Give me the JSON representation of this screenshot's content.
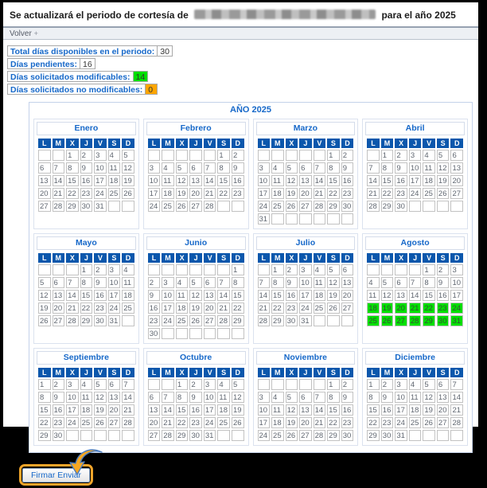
{
  "page": {
    "title_prefix": "Se actualizará el periodo de cortesía de",
    "title_suffix": "para el año 2025",
    "back_label": "Volver",
    "back_glyph": "+"
  },
  "summary": {
    "rows": [
      {
        "label": "Total días disponibles en el periodo:",
        "value": "30",
        "bg": "#ffffff"
      },
      {
        "label": "Días pendientes:",
        "value": "16",
        "bg": "#ffffff"
      },
      {
        "label": "Días solicitados modificables:",
        "value": "14",
        "bg": "#00e000"
      },
      {
        "label": "Días solicitados no modificables:",
        "value": "0",
        "bg": "#ffa500"
      }
    ]
  },
  "calendar": {
    "year_title": "AÑO 2025",
    "day_headers": [
      "L",
      "M",
      "X",
      "J",
      "V",
      "S",
      "D"
    ],
    "months": [
      {
        "name": "Enero",
        "start": 2,
        "days": 31,
        "highlight": []
      },
      {
        "name": "Febrero",
        "start": 5,
        "days": 28,
        "highlight": []
      },
      {
        "name": "Marzo",
        "start": 5,
        "days": 31,
        "highlight": []
      },
      {
        "name": "Abril",
        "start": 1,
        "days": 30,
        "highlight": []
      },
      {
        "name": "Mayo",
        "start": 3,
        "days": 31,
        "highlight": []
      },
      {
        "name": "Junio",
        "start": 6,
        "days": 30,
        "highlight": []
      },
      {
        "name": "Julio",
        "start": 1,
        "days": 31,
        "highlight": []
      },
      {
        "name": "Agosto",
        "start": 4,
        "days": 31,
        "highlight": [
          18,
          19,
          20,
          21,
          22,
          23,
          24,
          25,
          26,
          27,
          28,
          29,
          30,
          31
        ]
      },
      {
        "name": "Septiembre",
        "start": 0,
        "days": 30,
        "highlight": []
      },
      {
        "name": "Octubre",
        "start": 2,
        "days": 31,
        "highlight": []
      },
      {
        "name": "Noviembre",
        "start": 5,
        "days": 30,
        "highlight": []
      },
      {
        "name": "Diciembre",
        "start": 0,
        "days": 31,
        "highlight": []
      }
    ]
  },
  "footer": {
    "submit_label": "Firmar Enviar"
  },
  "colors": {
    "header_blue": "#0b57ac",
    "accent_blue": "#1668c9",
    "highlight_green": "#00e000",
    "highlight_orange": "#ffa500"
  }
}
